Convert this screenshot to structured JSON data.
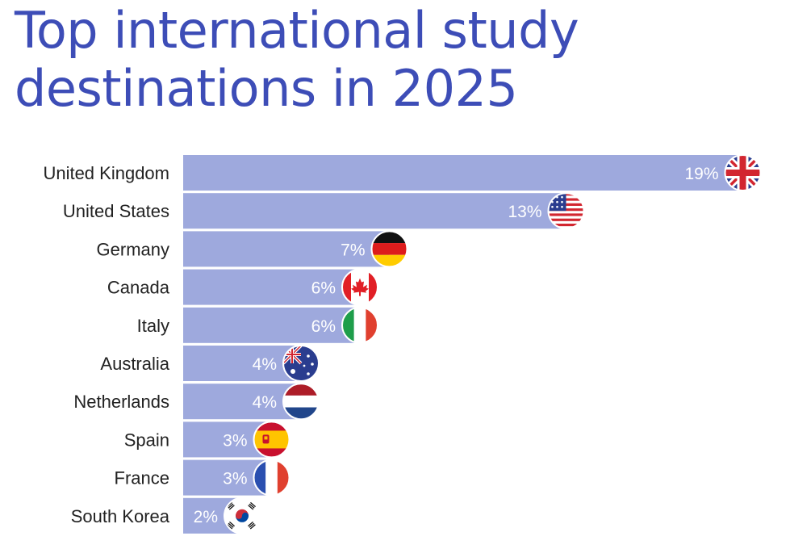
{
  "title": "Top international study destinations in 2025",
  "colors": {
    "bar": "#9ea9dd",
    "title": "#3d4db7",
    "label": "#222222",
    "value": "#ffffff"
  },
  "chart_data": {
    "type": "bar",
    "orientation": "horizontal",
    "title": "Top international study destinations in 2025",
    "categories": [
      "United Kingdom",
      "United States",
      "Germany",
      "Canada",
      "Italy",
      "Australia",
      "Netherlands",
      "Spain",
      "France",
      "South Korea"
    ],
    "values": [
      19,
      13,
      7,
      6,
      6,
      4,
      4,
      3,
      3,
      2
    ],
    "value_labels": [
      "19%",
      "13%",
      "7%",
      "6%",
      "6%",
      "4%",
      "4%",
      "3%",
      "3%",
      "2%"
    ],
    "flag_icons": [
      "uk-flag-icon",
      "us-flag-icon",
      "germany-flag-icon",
      "canada-flag-icon",
      "italy-flag-icon",
      "australia-flag-icon",
      "netherlands-flag-icon",
      "spain-flag-icon",
      "france-flag-icon",
      "south-korea-flag-icon"
    ],
    "unit": "%",
    "xlim": [
      0,
      19
    ],
    "grid": false,
    "legend": "none"
  }
}
